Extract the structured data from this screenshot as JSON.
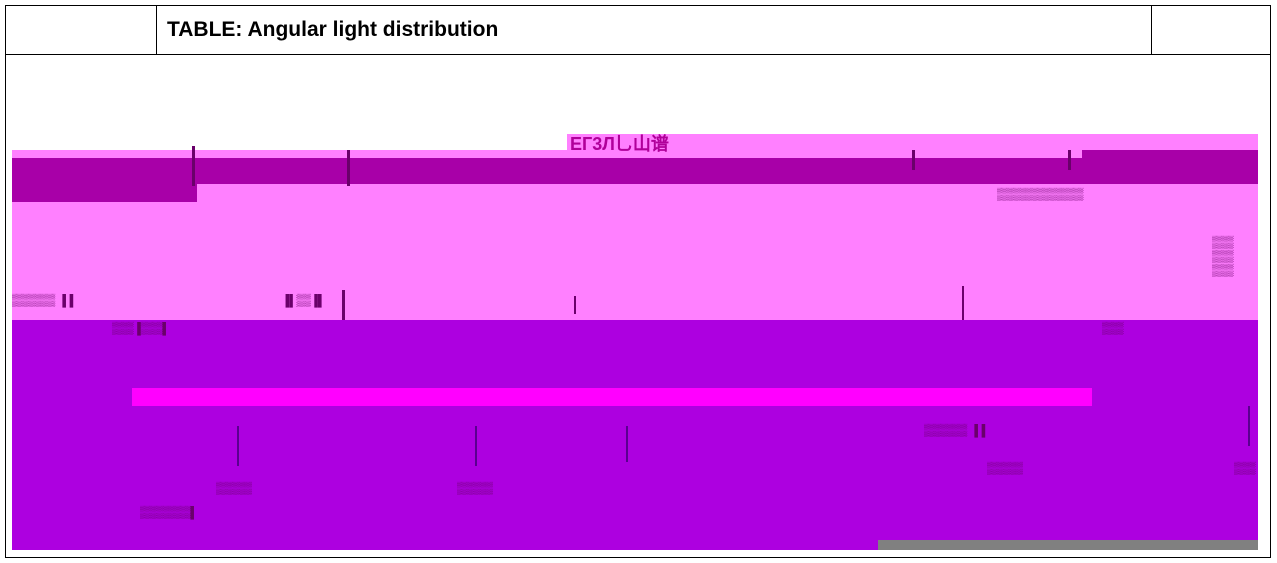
{
  "table": {
    "title": "TABLE: Angular light distribution",
    "left_cell": "",
    "right_cell": ""
  },
  "figure": {
    "heading_garbled": "ЕГ3Л乚山谱",
    "colors": {
      "pink": "#ff80ff",
      "dark_magenta": "#a800a8",
      "purple": "#ad00e0",
      "magenta_strip": "#ff00ff",
      "gray": "#808080"
    }
  }
}
